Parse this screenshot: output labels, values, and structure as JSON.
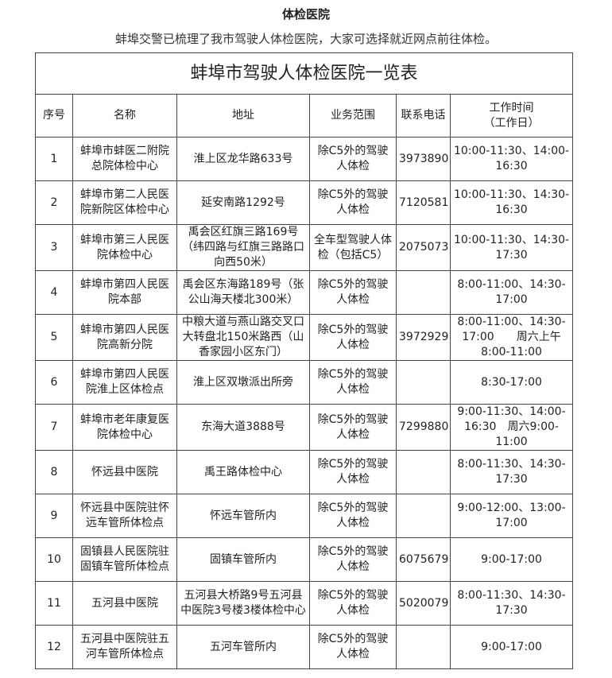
{
  "header": {
    "title": "体检医院",
    "intro": "蚌埠交警已梳理了我市驾驶人体检医院，大家可选择就近网点前往体检。"
  },
  "table": {
    "title": "蚌埠市驾驶人体检医院一览表",
    "columns": [
      "序号",
      "名称",
      "地址",
      "业务范围",
      "联系电话",
      [
        "工作时间",
        "（工作日）"
      ]
    ],
    "rows": [
      [
        "1",
        "蚌埠市蚌医二附院总院体检中心",
        "淮上区龙华路633号",
        "除C5外的驾驶人体检",
        "3973890",
        "10:00-11:30、14:00-16:30"
      ],
      [
        "2",
        "蚌埠市第二人民医院新院区体检中心",
        "延安南路1292号",
        "除C5外的驾驶人体检",
        "7120581",
        "10:00-11:30、14:30-16:30"
      ],
      [
        "3",
        "蚌埠市第三人民医院体检中心",
        "禹会区红旗三路169号（纬四路与红旗三路路口向西50米）",
        "全车型驾驶人体检（包括C5）",
        "2075073",
        "10:00-11:30、14:30-17:30"
      ],
      [
        "4",
        "蚌埠市第四人民医院本部",
        "禹会区东海路189号（张公山海天楼北300米）",
        "除C5外的驾驶人体检",
        null,
        "8:00-11:00、14:30-17:00"
      ],
      [
        "5",
        "蚌埠市第四人民医院高新分院",
        "中粮大道与燕山路交叉口大转盘北150米路西（山香家园小区东门）",
        "除C5外的驾驶人体检",
        "3972929",
        "8:00-11:00、14:30-17:00　　周六上午8:00-11:00"
      ],
      [
        "6",
        "蚌埠市第四人民医院淮上区体检点",
        "淮上区双墩派出所旁",
        "除C5外的驾驶人体检",
        null,
        "8:30-17:00"
      ],
      [
        "7",
        "蚌埠市老年康复医院体检中心",
        "东海大道3888号",
        "除C5外的驾驶人体检",
        "7299880",
        "9:00-11:30、14:00-16:30　周六9:00-11:00"
      ],
      [
        "8",
        "怀远县中医院",
        "禹王路体检中心",
        "除C5外的驾驶人体检",
        null,
        "8:00-11:30、14:30-17:30"
      ],
      [
        "9",
        "怀远县中医院驻怀远车管所体检点",
        "怀远车管所内",
        "除C5外的驾驶人体检",
        null,
        "9:00-12:00、13:00-17:00"
      ],
      [
        "10",
        "固镇县人民医院驻固镇车管所体检点",
        "固镇车管所内",
        "除C5外的驾驶人体检",
        "6075679",
        "9:00-17:00"
      ],
      [
        "11",
        "五河县中医院",
        "五河县大桥路9号五河县中医院3号楼3楼体检中心",
        "除C5外的驾驶人体检",
        "5020079",
        "8:00-11:30、14:30-17:30"
      ],
      [
        "12",
        "五河县中医院驻五河车管所体检点",
        "五河车管所内",
        "除C5外的驾驶人体检",
        null,
        "9:00-17:00"
      ]
    ]
  }
}
